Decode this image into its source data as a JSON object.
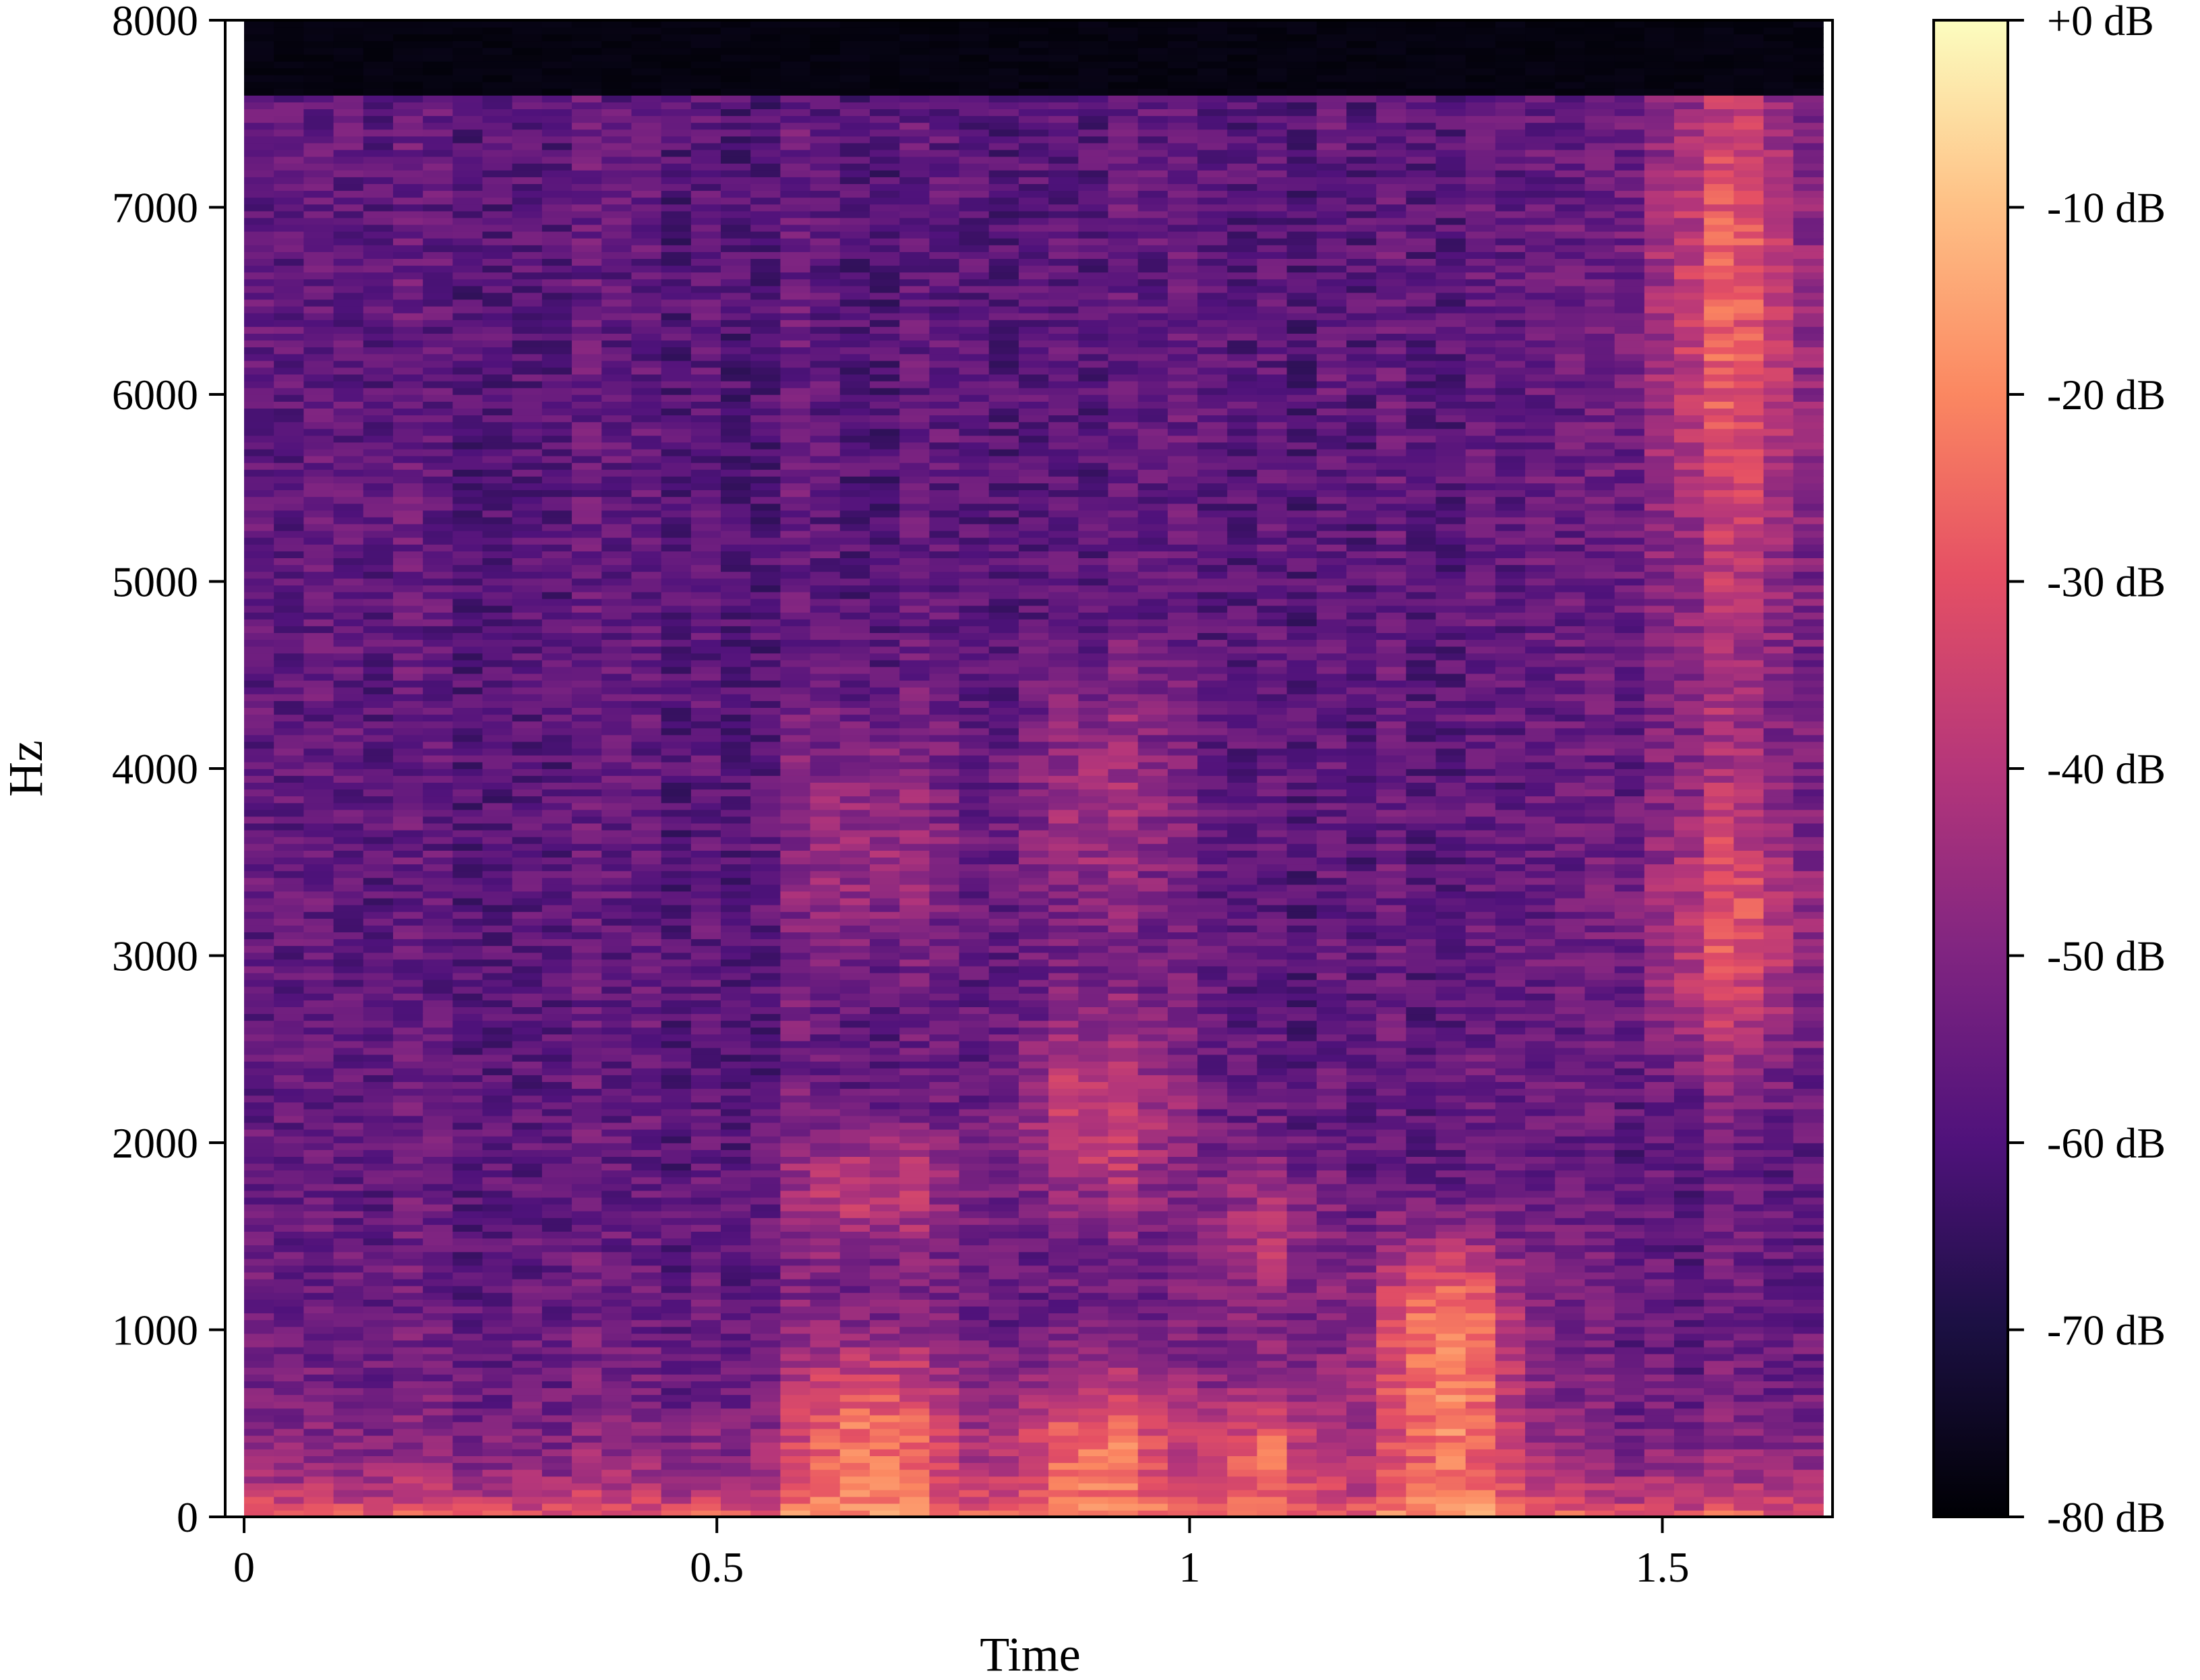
{
  "chart_data": [
    {
      "type": "heatmap",
      "title": "",
      "xlabel": "Time",
      "ylabel": "Hz",
      "x_ticks": [
        {
          "value": 0,
          "label": "0"
        },
        {
          "value": 0.5,
          "label": "0.5"
        },
        {
          "value": 1,
          "label": "1"
        },
        {
          "value": 1.5,
          "label": "1.5"
        }
      ],
      "y_ticks": [
        {
          "value": 0,
          "label": "0"
        },
        {
          "value": 1000,
          "label": "1000"
        },
        {
          "value": 2000,
          "label": "2000"
        },
        {
          "value": 3000,
          "label": "3000"
        },
        {
          "value": 4000,
          "label": "4000"
        },
        {
          "value": 5000,
          "label": "5000"
        },
        {
          "value": 6000,
          "label": "6000"
        },
        {
          "value": 7000,
          "label": "7000"
        },
        {
          "value": 8000,
          "label": "8000"
        }
      ],
      "xlim": [
        -0.02,
        1.68
      ],
      "ylim": [
        0,
        8000
      ],
      "grid": false,
      "colormap": "magma",
      "value_range_db": [
        -80,
        0
      ],
      "time_frames": 53,
      "notes_regions": [
        {
          "t": [
            0.6,
            0.72
          ],
          "hz": [
            0,
            800
          ],
          "db": -12
        },
        {
          "t": [
            0.85,
            0.95
          ],
          "hz": [
            1700,
            2600
          ],
          "db": -22
        },
        {
          "t": [
            1.22,
            1.32
          ],
          "hz": [
            0,
            1300
          ],
          "db": -15
        },
        {
          "t": [
            1.5,
            1.62
          ],
          "hz": [
            2500,
            7500
          ],
          "db": -28
        }
      ]
    },
    {
      "type": "colorbar",
      "ticks": [
        {
          "value": 0,
          "label": "+0 dB"
        },
        {
          "value": -10,
          "label": "-10 dB"
        },
        {
          "value": -20,
          "label": "-20 dB"
        },
        {
          "value": -30,
          "label": "-30 dB"
        },
        {
          "value": -40,
          "label": "-40 dB"
        },
        {
          "value": -50,
          "label": "-50 dB"
        },
        {
          "value": -60,
          "label": "-60 dB"
        },
        {
          "value": -70,
          "label": "-70 dB"
        },
        {
          "value": -80,
          "label": "-80 dB"
        }
      ],
      "range": [
        -80,
        0
      ],
      "colormap_stops": [
        {
          "value": 0.0,
          "color": "#000004"
        },
        {
          "value": 0.13,
          "color": "#1c1044"
        },
        {
          "value": 0.25,
          "color": "#4f127b"
        },
        {
          "value": 0.38,
          "color": "#812581"
        },
        {
          "value": 0.5,
          "color": "#b5367a"
        },
        {
          "value": 0.63,
          "color": "#e55064"
        },
        {
          "value": 0.75,
          "color": "#fb8761"
        },
        {
          "value": 0.88,
          "color": "#fec287"
        },
        {
          "value": 1.0,
          "color": "#fcfdbf"
        }
      ]
    }
  ]
}
